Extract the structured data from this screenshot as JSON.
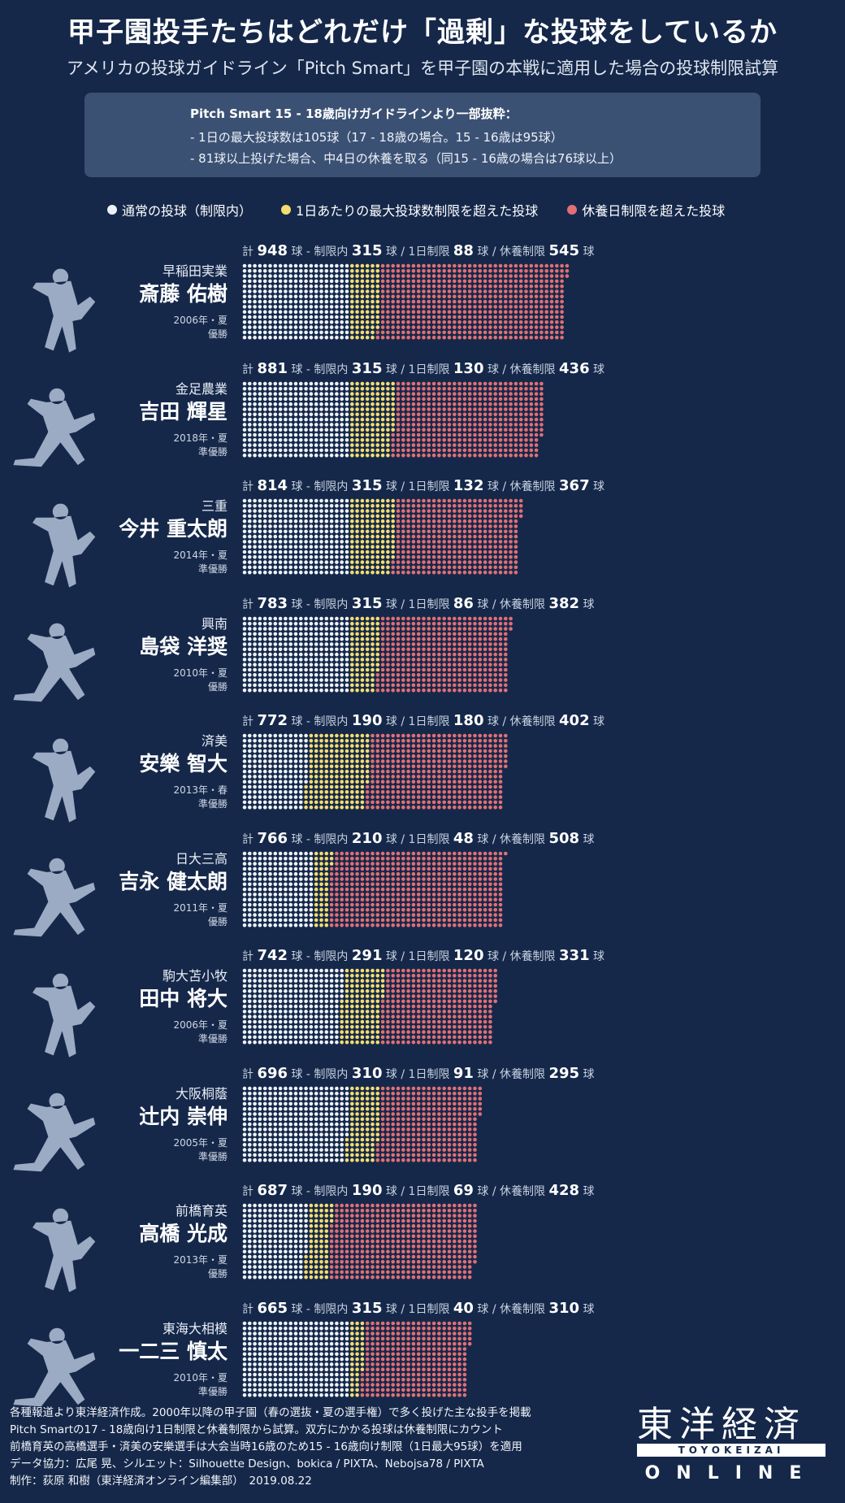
{
  "header": {
    "title": "甲子園投手たちはどれだけ「過剰」な投球をしているか",
    "subtitle": "アメリカの投球ガイドライン「Pitch Smart」を甲子園の本戦に適用した場合の投球制限試算"
  },
  "note": {
    "heading": "Pitch Smart 15 - 18歳向けガイドラインより一部抜粋：",
    "line1": "- 1日の最大投球数は105球（17 - 18歳の場合。15 - 16歳は95球）",
    "line2": "- 81球以上投げた場合、中4日の休養を取る（同15 - 16歳の場合は76球以上）"
  },
  "legend": {
    "normal": "通常の投球（制限内）",
    "daily": "1日あたりの最大投球数制限を超えた投球",
    "rest": "休養日制限を超えた投球"
  },
  "labels": {
    "total_prefix": "計",
    "ball": "球",
    "within": "球 - 制限内",
    "daily": "球 / 1日制限",
    "rest": "球 / 休養制限"
  },
  "colors": {
    "normal": "#eef2f8",
    "daily": "#f4dd6e",
    "rest": "#e16f74",
    "background": "#15284a"
  },
  "chart_data": {
    "type": "dot-matrix stacked bar",
    "series": [
      {
        "name": "通常の投球（制限内）",
        "key": "within"
      },
      {
        "name": "1日あたりの最大投球数制限を超えた投球",
        "key": "daily"
      },
      {
        "name": "休養日制限を超えた投球",
        "key": "rest"
      }
    ],
    "pitchers": [
      {
        "school": "早稲田実業",
        "name": "斎藤 佑樹",
        "year": "2006年・夏",
        "result": "優勝",
        "total": 948,
        "within": 315,
        "daily": 88,
        "rest": 545,
        "icon": "pitcher-silhouette-icon"
      },
      {
        "school": "金足農業",
        "name": "吉田 輝星",
        "year": "2018年・夏",
        "result": "準優勝",
        "total": 881,
        "within": 315,
        "daily": 130,
        "rest": 436,
        "icon": "pitcher-silhouette-icon"
      },
      {
        "school": "三重",
        "name": "今井 重太朗",
        "year": "2014年・夏",
        "result": "準優勝",
        "total": 814,
        "within": 315,
        "daily": 132,
        "rest": 367,
        "icon": "pitcher-silhouette-icon"
      },
      {
        "school": "興南",
        "name": "島袋 洋奨",
        "year": "2010年・夏",
        "result": "優勝",
        "total": 783,
        "within": 315,
        "daily": 86,
        "rest": 382,
        "icon": "pitcher-silhouette-icon"
      },
      {
        "school": "済美",
        "name": "安樂 智大",
        "year": "2013年・春",
        "result": "準優勝",
        "total": 772,
        "within": 190,
        "daily": 180,
        "rest": 402,
        "icon": "pitcher-silhouette-icon"
      },
      {
        "school": "日大三高",
        "name": "吉永 健太朗",
        "year": "2011年・夏",
        "result": "優勝",
        "total": 766,
        "within": 210,
        "daily": 48,
        "rest": 508,
        "icon": "pitcher-silhouette-icon"
      },
      {
        "school": "駒大苫小牧",
        "name": "田中 将大",
        "year": "2006年・夏",
        "result": "準優勝",
        "total": 742,
        "within": 291,
        "daily": 120,
        "rest": 331,
        "icon": "pitcher-silhouette-icon"
      },
      {
        "school": "大阪桐蔭",
        "name": "辻内 崇伸",
        "year": "2005年・夏",
        "result": "準優勝",
        "total": 696,
        "within": 310,
        "daily": 91,
        "rest": 295,
        "icon": "pitcher-silhouette-icon"
      },
      {
        "school": "前橋育英",
        "name": "高橋 光成",
        "year": "2013年・夏",
        "result": "優勝",
        "total": 687,
        "within": 190,
        "daily": 69,
        "rest": 428,
        "icon": "pitcher-silhouette-icon"
      },
      {
        "school": "東海大相模",
        "name": "一二三 慎太",
        "year": "2010年・夏",
        "result": "準優勝",
        "total": 665,
        "within": 315,
        "daily": 40,
        "rest": 310,
        "icon": "pitcher-silhouette-icon"
      }
    ]
  },
  "footer": {
    "line1": "各種報道より東洋経済作成。2000年以降の甲子園（春の選抜・夏の選手権）で多く投げた主な投手を掲載",
    "line2": "Pitch Smartの17 - 18歳向け1日制限と休養制限から試算。双方にかかる投球は休養制限にカウント",
    "line3": "前橋育英の高橋選手・済美の安樂選手は大会当時16歳のため15 - 16歳向け制限（1日最大95球）を適用",
    "line4": "データ協力：広尾 晃、シルエット：Silhouette Design、bokica / PIXTA、Nebojsa78 / PIXTA",
    "line5": "制作：荻原 和樹（東洋経済オンライン編集部）　2019.08.22"
  },
  "logo": {
    "main": "東洋経済",
    "bar": "TOYOKEIZAI",
    "bottom": "ONLINE"
  }
}
